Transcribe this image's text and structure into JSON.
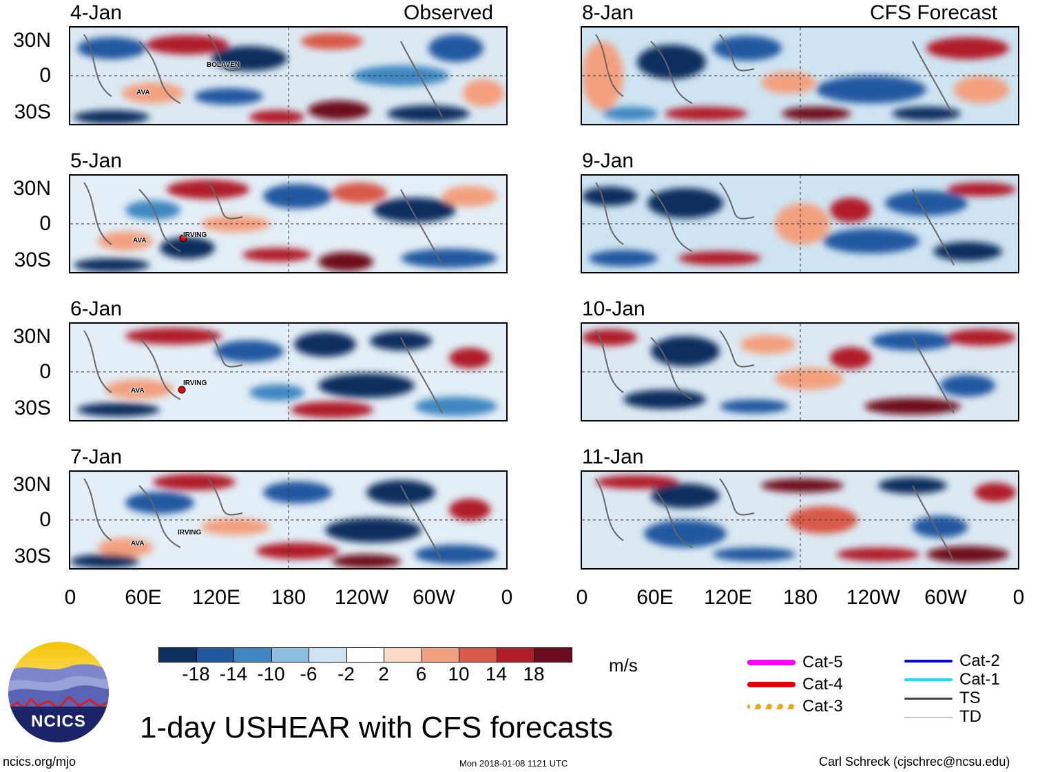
{
  "panels": {
    "observed": [
      {
        "date": "4-Jan",
        "header": "Observed",
        "storms": [
          {
            "name": "BOLAVEN"
          },
          {
            "name": "AVA"
          }
        ]
      },
      {
        "date": "5-Jan",
        "storms": [
          {
            "name": "AVA"
          },
          {
            "name": "IRVING"
          }
        ]
      },
      {
        "date": "6-Jan",
        "storms": [
          {
            "name": "AVA"
          },
          {
            "name": "IRVING"
          }
        ]
      },
      {
        "date": "7-Jan",
        "storms": [
          {
            "name": "AVA"
          },
          {
            "name": "IRVING"
          }
        ]
      }
    ],
    "forecast": [
      {
        "date": "8-Jan",
        "header": "CFS Forecast"
      },
      {
        "date": "9-Jan"
      },
      {
        "date": "10-Jan"
      },
      {
        "date": "11-Jan"
      }
    ]
  },
  "axes": {
    "lat_labels": [
      "30N",
      "0",
      "30S"
    ],
    "lon_labels": [
      "0",
      "60E",
      "120E",
      "180",
      "120W",
      "60W",
      "0"
    ]
  },
  "colorbar": {
    "colors": [
      "#0b2f5e",
      "#2159a0",
      "#3f87c1",
      "#8ebfe0",
      "#cfe4f2",
      "#ffffff",
      "#fcd9c4",
      "#f3a07f",
      "#d85a4a",
      "#b01d2b",
      "#6e0a1f"
    ],
    "ticks": [
      "-18",
      "-14",
      "-10",
      "-6",
      "-2",
      "2",
      "6",
      "10",
      "14",
      "18"
    ],
    "units": "m/s"
  },
  "legend": {
    "items": [
      {
        "label": "Cat-5",
        "color": "#ff00ff"
      },
      {
        "label": "Cat-4",
        "color": "#e8000b"
      },
      {
        "label": "Cat-3",
        "color": "#f0a418"
      },
      {
        "label": "Cat-2",
        "color": "#0000e0"
      },
      {
        "label": "Cat-1",
        "color": "#00e5ff"
      },
      {
        "label": "TS",
        "color": "#444444"
      },
      {
        "label": "TD",
        "color": "#999999"
      }
    ]
  },
  "logo": {
    "text": "NCICS"
  },
  "title": "1-day USHEAR with CFS forecasts",
  "footer": {
    "left": "ncics.org/mjo",
    "center": "Mon 2018-01-08 1121 UTC",
    "right": "Carl Schreck (cjschrec@ncsu.edu)"
  }
}
